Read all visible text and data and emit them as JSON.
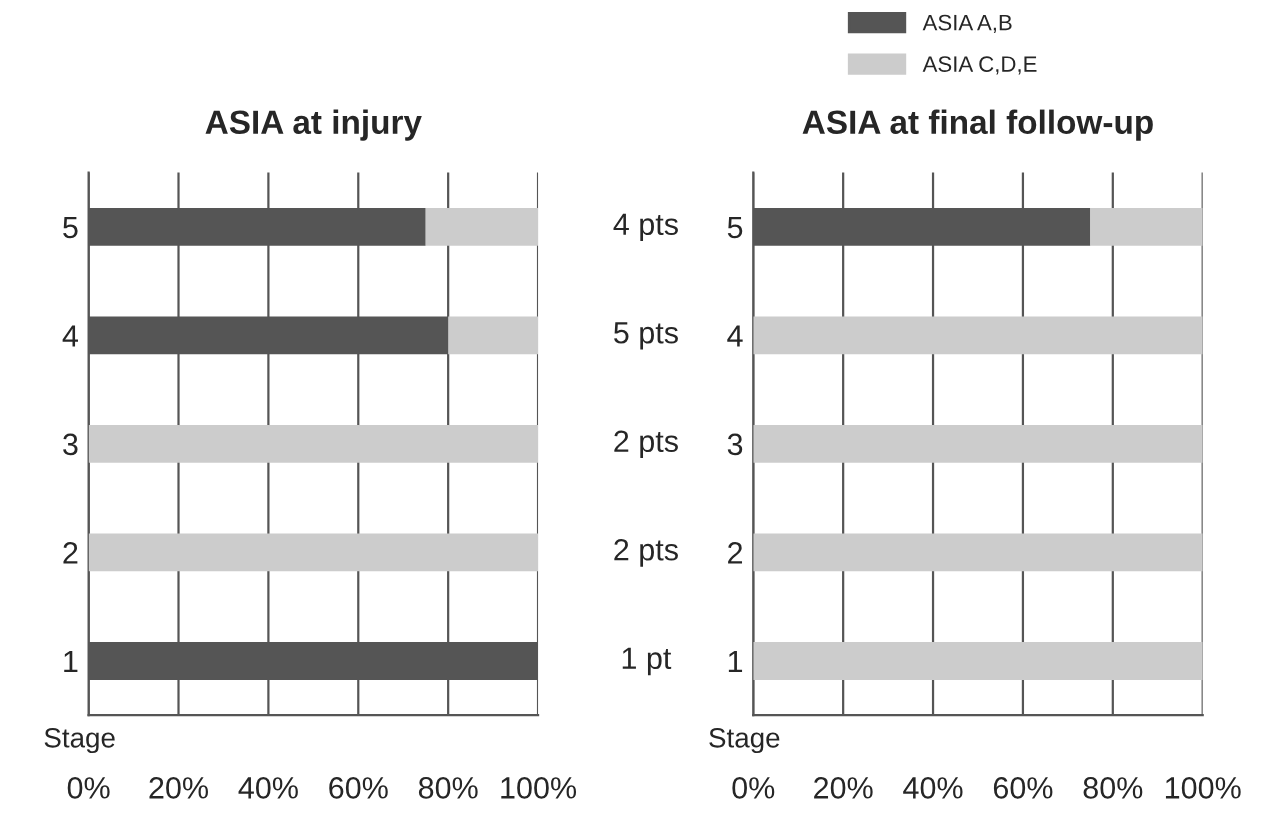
{
  "chart_data": [
    {
      "type": "bar",
      "orientation": "horizontal",
      "stacked": true,
      "title": "ASIA at injury",
      "ylabel": "Stage",
      "categories": [
        "5",
        "4",
        "3",
        "2",
        "1"
      ],
      "series": [
        {
          "name": "ASIA A,B",
          "color": "#555555",
          "values": [
            75,
            80,
            0,
            0,
            100
          ]
        },
        {
          "name": "ASIA C,D,E",
          "color": "#cccccc",
          "values": [
            25,
            20,
            100,
            100,
            0
          ]
        }
      ],
      "xlim": [
        0,
        100
      ],
      "xticks": [
        {
          "value": 0,
          "label": "0%"
        },
        {
          "value": 20,
          "label": "20%"
        },
        {
          "value": 40,
          "label": "40%"
        },
        {
          "value": 60,
          "label": "60%"
        },
        {
          "value": 80,
          "label": "80%"
        },
        {
          "value": 100,
          "label": "100%"
        }
      ],
      "grid": "x",
      "legend": "top right",
      "annotations": [
        "4 pts",
        "5 pts",
        "2 pts",
        "2 pts",
        "1 pt"
      ]
    },
    {
      "type": "bar",
      "orientation": "horizontal",
      "stacked": true,
      "title": "ASIA at final follow-up",
      "ylabel": "Stage",
      "categories": [
        "5",
        "4",
        "3",
        "2",
        "1"
      ],
      "series": [
        {
          "color": "#555555",
          "values": [
            75,
            0,
            0,
            0,
            0
          ]
        },
        {
          "color": "#cccccc",
          "values": [
            25,
            100,
            100,
            100,
            100
          ]
        }
      ],
      "xlim": [
        0,
        100
      ],
      "xticks": [
        {
          "value": 0,
          "label": "0%"
        },
        {
          "value": 20,
          "label": "20%"
        },
        {
          "value": 40,
          "label": "40%"
        },
        {
          "value": 60,
          "label": "60%"
        },
        {
          "value": 80,
          "label": "80%"
        },
        {
          "value": 100,
          "label": "100%"
        }
      ],
      "grid": "x"
    }
  ]
}
